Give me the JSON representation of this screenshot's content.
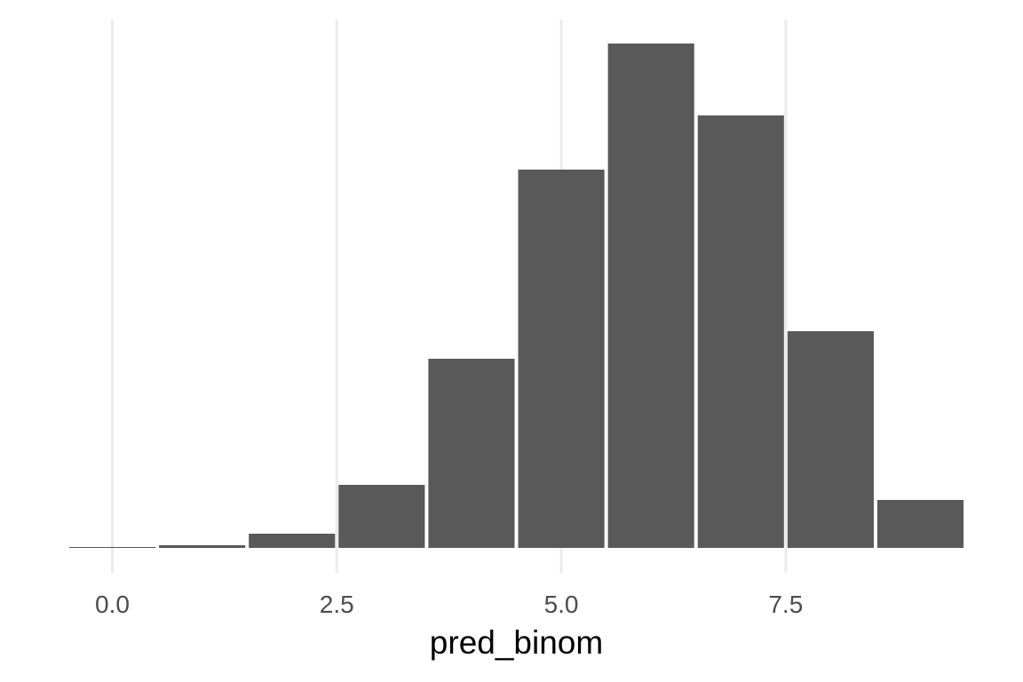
{
  "chart_data": {
    "type": "bar",
    "title": "",
    "xlabel": "pred_binom",
    "ylabel": "",
    "x": [
      0,
      1,
      2,
      3,
      4,
      5,
      6,
      7,
      8,
      9
    ],
    "values": [
      1,
      3,
      16,
      71,
      213,
      426,
      568,
      487,
      244,
      54
    ],
    "xlim": [
      -0.45,
      9.45
    ],
    "ylim": [
      0,
      568
    ],
    "x_ticks": [
      0,
      2.5,
      5,
      7.5
    ],
    "x_tick_labels": [
      "0.0",
      "2.5",
      "5.0",
      "7.5"
    ],
    "y_ticks_shown": false,
    "grid": "vertical major lines only",
    "bar_color": "#595959",
    "grid_color": "#ebebeb",
    "background": "#ffffff"
  }
}
